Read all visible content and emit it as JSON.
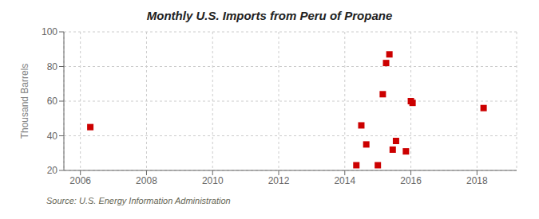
{
  "chart_data": {
    "type": "scatter",
    "title": "Monthly U.S. Imports from Peru of Propane",
    "y_label": "Thousand Barrels",
    "annotations": [
      "Source: U.S. Energy Information Administration"
    ],
    "x": [
      2006.3,
      2014.35,
      2014.5,
      2014.65,
      2015.0,
      2015.15,
      2015.25,
      2015.35,
      2015.45,
      2015.55,
      2015.85,
      2016.0,
      2016.05,
      2018.2
    ],
    "values": [
      45,
      23,
      46,
      35,
      23,
      64,
      82,
      87,
      32,
      37,
      31,
      60,
      59,
      56
    ],
    "color": "#cc0000",
    "marker": "square",
    "xlim": [
      2005.5,
      2019.2
    ],
    "ylim": [
      20,
      100
    ],
    "xticks": [
      2006,
      2008,
      2010,
      2012,
      2014,
      2016,
      2018
    ],
    "yticks": [
      20,
      40,
      60,
      80,
      100
    ],
    "grid": true
  }
}
